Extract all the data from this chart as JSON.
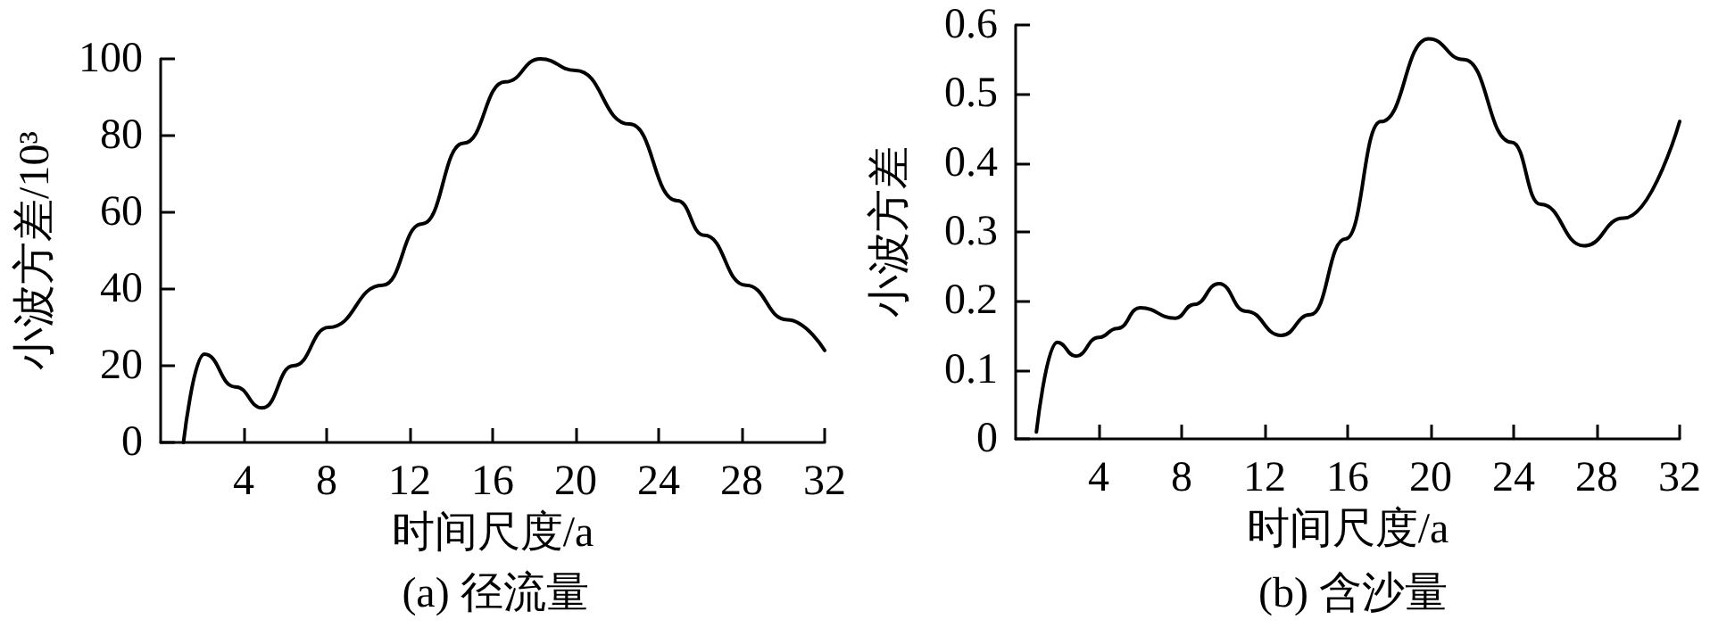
{
  "chart_data": [
    {
      "type": "line",
      "title": "(a) 径流量",
      "xlabel": "时间尺度/a",
      "ylabel": "小波方差/10³",
      "x": [
        1.1,
        2.1,
        3.6,
        4.9,
        6.4,
        8.1,
        10.7,
        12.6,
        14.6,
        16.6,
        18.3,
        20,
        22.6,
        24.9,
        26.2,
        28.2,
        30.2,
        32
      ],
      "series": [
        {
          "color": "#000000",
          "values": [
            0,
            23,
            14.5,
            9,
            20,
            30,
            41,
            57,
            78,
            94,
            100,
            97,
            83,
            63,
            54,
            41,
            32,
            24
          ]
        }
      ],
      "xlim": [
        0,
        32
      ],
      "xticks": [
        4,
        8,
        12,
        16,
        20,
        24,
        28,
        32
      ],
      "ylim": [
        0,
        100
      ],
      "yticks": [
        0,
        20,
        40,
        60,
        80,
        100
      ]
    },
    {
      "type": "line",
      "title": "(b) 含沙量",
      "xlabel": "时间尺度/a",
      "ylabel": "小波方差",
      "x": [
        1.0,
        2.0,
        2.9,
        4.0,
        4.9,
        6.0,
        7.7,
        8.6,
        9.8,
        11.1,
        12.8,
        14.2,
        15.9,
        17.6,
        19.9,
        21.6,
        23.9,
        25.3,
        27.4,
        29.3,
        32
      ],
      "series": [
        {
          "color": "#000000",
          "values": [
            0.01,
            0.14,
            0.12,
            0.147,
            0.16,
            0.19,
            0.175,
            0.195,
            0.225,
            0.185,
            0.15,
            0.18,
            0.29,
            0.46,
            0.58,
            0.55,
            0.43,
            0.34,
            0.28,
            0.32,
            0.46
          ]
        }
      ],
      "xlim": [
        0,
        32
      ],
      "xticks": [
        4,
        8,
        12,
        16,
        20,
        24,
        28,
        32
      ],
      "ylim": [
        0,
        0.6
      ],
      "yticks": [
        0,
        0.1,
        0.2,
        0.3,
        0.4,
        0.5,
        0.6
      ]
    }
  ]
}
